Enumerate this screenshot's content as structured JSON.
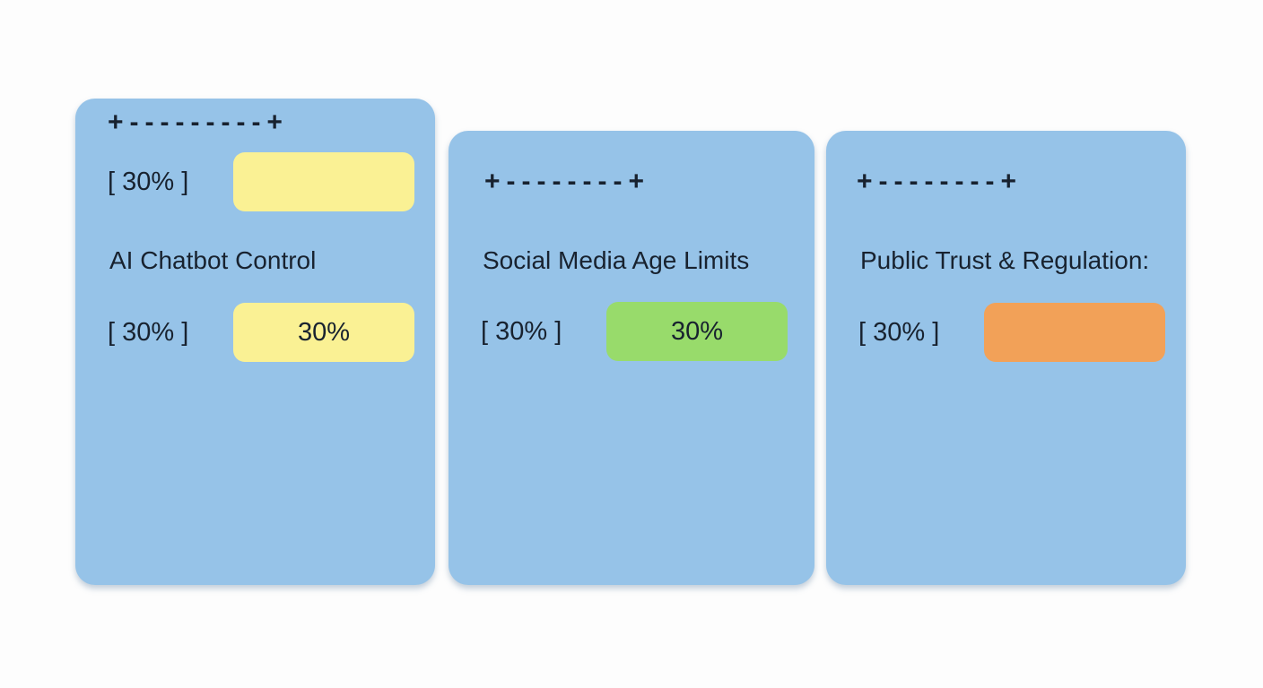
{
  "page": {
    "background": "#fdfdfd"
  },
  "colors": {
    "card_bg": "#96c3e8",
    "text_dark": "#18222f",
    "yellow": "#faf194",
    "green": "#98db6b",
    "orange": "#f2a158"
  },
  "cards": [
    {
      "title": "AI Chatbot Control",
      "header_ascii": "+---------+",
      "rows": [
        {
          "label": "[ 30% ]",
          "value": "",
          "swatch_color": "#faf194",
          "swatch_name": "yellow"
        },
        {
          "label": "[ 30% ]",
          "value": "30%",
          "swatch_color": "#faf194",
          "swatch_name": "yellow"
        }
      ]
    },
    {
      "title": "Social Media Age Limits",
      "header_ascii": "+--------+",
      "rows": [
        {
          "label": "[ 30% ]",
          "value": "30%",
          "swatch_color": "#98db6b",
          "swatch_name": "green"
        }
      ]
    },
    {
      "title": "Public Trust & Regulation:",
      "header_ascii": "+--------+",
      "rows": [
        {
          "label": "[ 30% ]",
          "value": "",
          "swatch_color": "#f2a158",
          "swatch_name": "orange"
        }
      ]
    }
  ]
}
